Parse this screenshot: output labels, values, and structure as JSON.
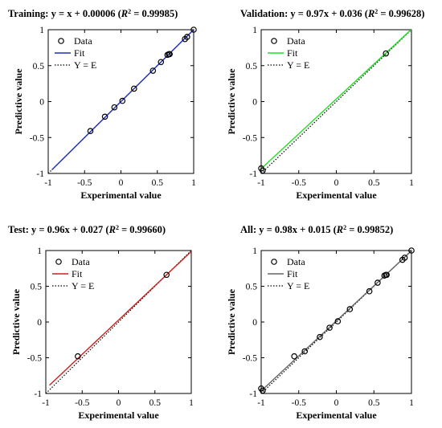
{
  "chart_data": [
    {
      "type": "scatter",
      "title_prefix": "Training: y = x + 0.00006 (",
      "title_r2": "R",
      "title_suffix": "2 = 0.99985)",
      "xlabel": "Experimental value",
      "ylabel": "Predictive value",
      "xlim": [
        -1,
        1
      ],
      "ylim": [
        -1,
        1
      ],
      "xticks": [
        "-1",
        "-0.5",
        "0",
        "0.5",
        "1"
      ],
      "yticks": [
        "-1",
        "-0.5",
        "0",
        "0.5",
        "1"
      ],
      "legend": [
        "Data",
        "Fit",
        "Y = E"
      ],
      "legend_position": "top-left",
      "fit_color": "#1f2fbf",
      "fit": {
        "slope": 1.0,
        "intercept": 6e-05,
        "x": [
          -0.95,
          1.0
        ]
      },
      "x": [
        -0.42,
        -0.22,
        -0.09,
        0.02,
        0.18,
        0.44,
        0.55,
        0.64,
        0.66,
        0.67,
        0.88,
        0.91,
        1.0
      ],
      "y": [
        -0.41,
        -0.21,
        -0.08,
        0.01,
        0.18,
        0.43,
        0.55,
        0.65,
        0.66,
        0.66,
        0.87,
        0.9,
        1.0
      ]
    },
    {
      "type": "scatter",
      "title_prefix": "Validation: y = 0.97x + 0.036 (",
      "title_r2": "R",
      "title_suffix": "2 = 0.99628)",
      "xlabel": "Experimental value",
      "ylabel": "Predictive value",
      "xlim": [
        -1,
        1
      ],
      "ylim": [
        -1,
        1
      ],
      "xticks": [
        "-1",
        "-0.5",
        "0",
        "0.5",
        "1"
      ],
      "yticks": [
        "-1",
        "-0.5",
        "0",
        "0.5",
        "1"
      ],
      "legend": [
        "Data",
        "Fit",
        "Y = E"
      ],
      "legend_position": "top-left",
      "fit_color": "#22e022",
      "fit": {
        "slope": 0.97,
        "intercept": 0.036,
        "x": [
          -1.0,
          1.0
        ]
      },
      "x": [
        -1.0,
        -0.98,
        0.66
      ],
      "y": [
        -0.93,
        -0.96,
        0.67
      ]
    },
    {
      "type": "scatter",
      "title_prefix": "Test: y = 0.96x + 0.027 (",
      "title_r2": "R",
      "title_suffix": "2 = 0.99660)",
      "xlabel": "Experimental value",
      "ylabel": "Predictive value",
      "xlim": [
        -1,
        1
      ],
      "ylim": [
        -1,
        1
      ],
      "xticks": [
        "-1",
        "-0.5",
        "0",
        "0.5",
        "1"
      ],
      "yticks": [
        "-1",
        "-0.5",
        "0",
        "0.5",
        "1"
      ],
      "legend": [
        "Data",
        "Fit",
        "Y = E"
      ],
      "legend_position": "top-left",
      "fit_color": "#cc2222",
      "fit": {
        "slope": 0.96,
        "intercept": 0.027,
        "x": [
          -0.95,
          1.0
        ]
      },
      "x": [
        -0.56,
        0.66
      ],
      "y": [
        -0.48,
        0.66
      ]
    },
    {
      "type": "scatter",
      "title_prefix": "All: y = 0.98x + 0.015 (",
      "title_r2": "R",
      "title_suffix": "2 = 0.99852)",
      "xlabel": "Experimental value",
      "ylabel": "Predictive value",
      "xlim": [
        -1,
        1
      ],
      "ylim": [
        -1,
        1
      ],
      "xticks": [
        "-1",
        "-0.5",
        "0",
        "0.5",
        "1"
      ],
      "yticks": [
        "-1",
        "-0.5",
        "0",
        "0.5",
        "1"
      ],
      "legend": [
        "Data",
        "Fit",
        "Y = E"
      ],
      "legend_position": "top-left",
      "fit_color": "#666666",
      "fit": {
        "slope": 0.98,
        "intercept": 0.015,
        "x": [
          -1.0,
          1.0
        ]
      },
      "x": [
        -1.0,
        -0.98,
        -0.56,
        -0.42,
        -0.22,
        -0.09,
        0.02,
        0.18,
        0.44,
        0.55,
        0.64,
        0.66,
        0.67,
        0.88,
        0.91,
        1.0
      ],
      "y": [
        -0.93,
        -0.96,
        -0.48,
        -0.41,
        -0.21,
        -0.08,
        0.01,
        0.18,
        0.43,
        0.55,
        0.65,
        0.66,
        0.66,
        0.87,
        0.9,
        1.0
      ]
    }
  ]
}
